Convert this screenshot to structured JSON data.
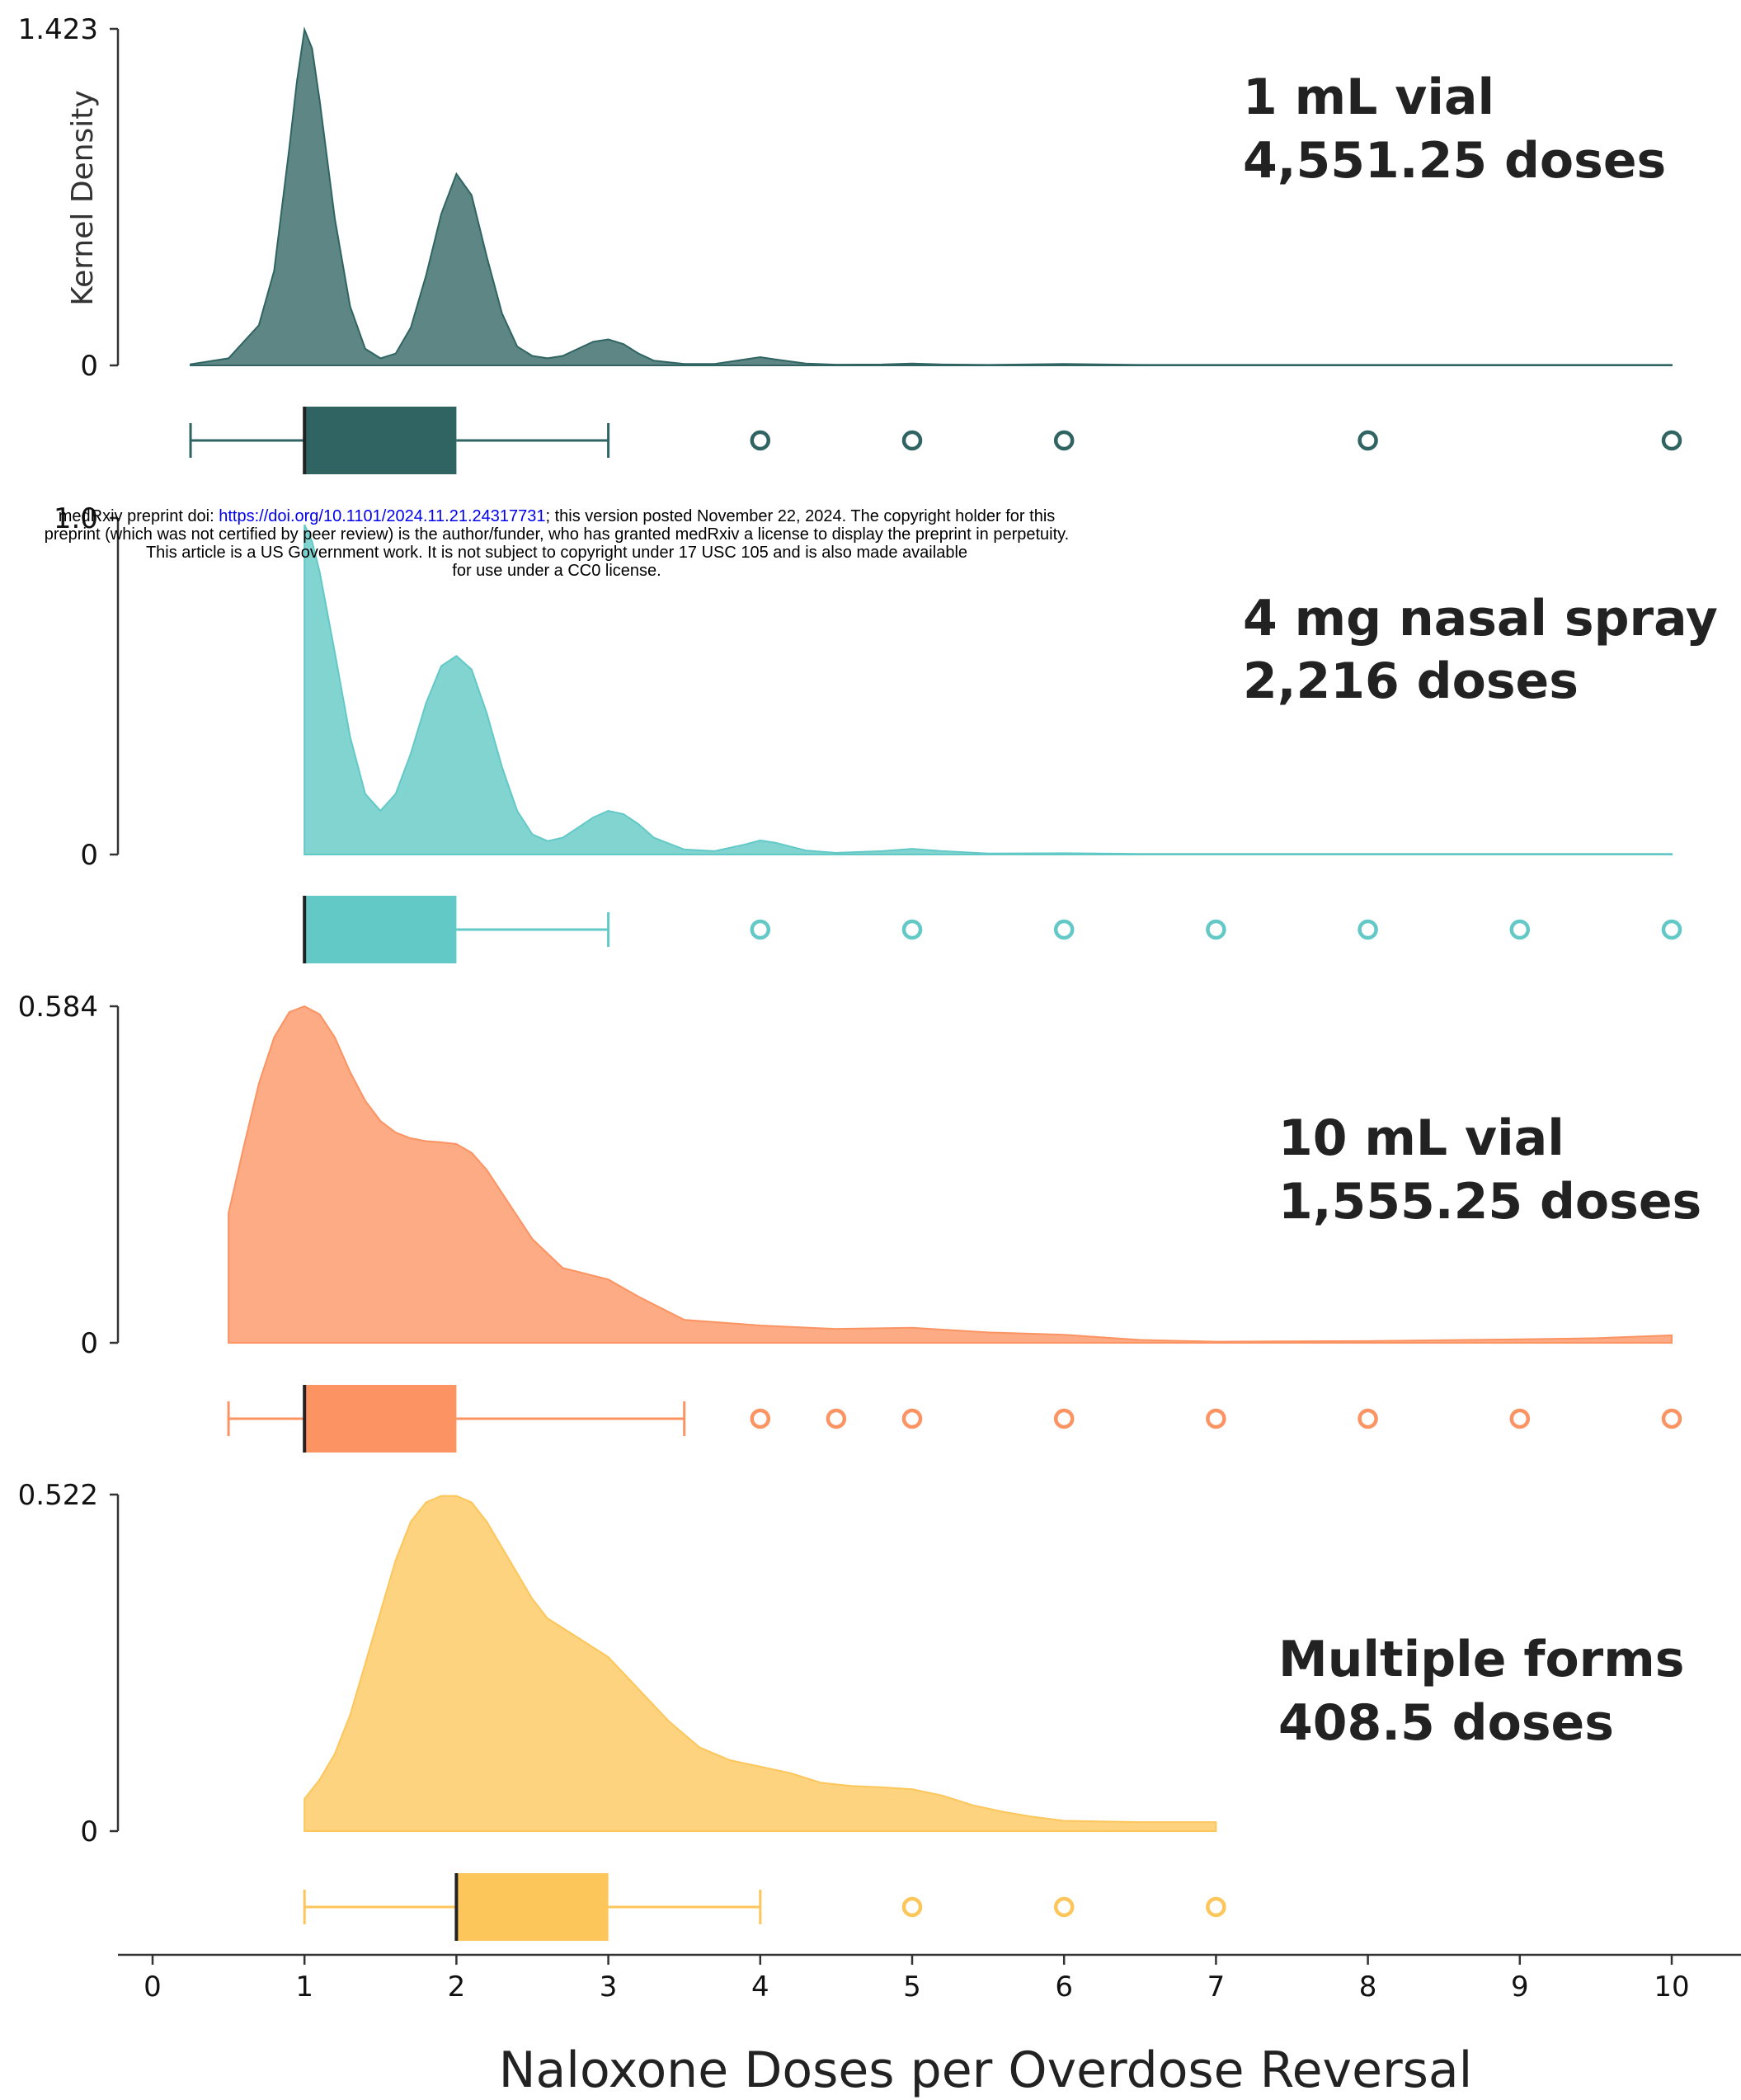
{
  "watermark": {
    "prefix": "medRxiv preprint doi: ",
    "doi": "https://doi.org/10.1101/2024.11.21.24317731",
    "suffix": "; this version posted November 22, 2024. The copyright holder for this",
    "line2": "preprint (which was not certified by peer review) is the author/funder, who has granted medRxiv a license to display the preprint in perpetuity.",
    "line3": "This article is a US Government work. It is not subject to copyright under 17 USC 105 and is also made available",
    "line4": "for use under a CC0 license."
  },
  "chart_data": {
    "type": "area",
    "xlabel": "Naloxone Doses per Overdose Reversal",
    "ylabel": "Kernel Density",
    "xlim": [
      0,
      10
    ],
    "xticks": [
      0,
      1,
      2,
      3,
      4,
      5,
      6,
      7,
      8,
      9,
      10
    ],
    "grid": false,
    "panels": [
      {
        "label_line1": "1 mL vial",
        "label_line2": "4,551.25 doses",
        "color": "#2f6462",
        "fill_opacity": 0.78,
        "ymax": 1.423,
        "ymax_label": "1.423",
        "ymin_label": "0",
        "density": {
          "x": [
            0.25,
            0.5,
            0.7,
            0.8,
            0.9,
            0.95,
            1.0,
            1.05,
            1.1,
            1.2,
            1.3,
            1.4,
            1.5,
            1.6,
            1.7,
            1.8,
            1.9,
            2.0,
            2.1,
            2.2,
            2.3,
            2.4,
            2.5,
            2.6,
            2.7,
            2.8,
            2.9,
            3.0,
            3.1,
            3.2,
            3.3,
            3.5,
            3.7,
            3.9,
            4.0,
            4.1,
            4.3,
            4.5,
            4.8,
            5.0,
            5.2,
            5.5,
            6.0,
            6.5,
            7.0,
            8.0,
            9.0,
            10.0
          ],
          "y": [
            0.005,
            0.03,
            0.17,
            0.4,
            0.92,
            1.2,
            1.42,
            1.34,
            1.12,
            0.62,
            0.25,
            0.07,
            0.03,
            0.05,
            0.16,
            0.38,
            0.64,
            0.81,
            0.72,
            0.46,
            0.22,
            0.08,
            0.04,
            0.03,
            0.04,
            0.07,
            0.1,
            0.11,
            0.09,
            0.05,
            0.02,
            0.006,
            0.006,
            0.025,
            0.035,
            0.025,
            0.008,
            0.003,
            0.004,
            0.008,
            0.004,
            0.002,
            0.006,
            0.002,
            0.002,
            0.002,
            0.002,
            0.002
          ]
        },
        "box": {
          "whisker_low": 0.25,
          "q1": 1,
          "median": 1,
          "q3": 2,
          "whisker_high": 3
        },
        "outliers": [
          4,
          5,
          6,
          8,
          10
        ]
      },
      {
        "label_line1": "4 mg nasal spray",
        "label_line2": "2,216 doses",
        "color": "#63c9c6",
        "fill_opacity": 0.8,
        "ymax": 1.0,
        "ymax_label": "1.0",
        "ymin_label": "0",
        "density": {
          "x": [
            1.0,
            1.05,
            1.1,
            1.2,
            1.3,
            1.4,
            1.5,
            1.6,
            1.7,
            1.8,
            1.9,
            2.0,
            2.1,
            2.2,
            2.3,
            2.4,
            2.5,
            2.6,
            2.7,
            2.8,
            2.9,
            3.0,
            3.1,
            3.2,
            3.3,
            3.5,
            3.7,
            3.9,
            4.0,
            4.1,
            4.3,
            4.5,
            4.8,
            5.0,
            5.2,
            5.5,
            6.0,
            6.5,
            7.0,
            8.0,
            9.0,
            10.0
          ],
          "y": [
            0.98,
            0.93,
            0.84,
            0.6,
            0.35,
            0.18,
            0.13,
            0.18,
            0.3,
            0.45,
            0.56,
            0.59,
            0.55,
            0.42,
            0.26,
            0.13,
            0.06,
            0.04,
            0.05,
            0.08,
            0.11,
            0.13,
            0.12,
            0.09,
            0.05,
            0.015,
            0.01,
            0.03,
            0.042,
            0.035,
            0.012,
            0.005,
            0.01,
            0.017,
            0.01,
            0.003,
            0.004,
            0.002,
            0.002,
            0.002,
            0.002,
            0.002
          ]
        },
        "box": {
          "whisker_low": 1,
          "q1": 1,
          "median": 1,
          "q3": 2,
          "whisker_high": 3
        },
        "outliers": [
          4,
          5,
          6,
          7,
          8,
          9,
          10
        ]
      },
      {
        "label_line1": "10 mL vial",
        "label_line2": "1,555.25 doses",
        "color": "#fb9362",
        "fill_opacity": 0.78,
        "ymax": 0.584,
        "ymax_label": "0.584",
        "ymin_label": "0",
        "density": {
          "x": [
            0.5,
            0.6,
            0.7,
            0.8,
            0.9,
            1.0,
            1.1,
            1.2,
            1.3,
            1.4,
            1.5,
            1.6,
            1.7,
            1.8,
            1.9,
            2.0,
            2.1,
            2.2,
            2.3,
            2.4,
            2.5,
            2.7,
            3.0,
            3.2,
            3.5,
            4.0,
            4.5,
            5.0,
            5.5,
            6.0,
            6.5,
            7.0,
            8.0,
            9.0,
            9.5,
            10.0
          ],
          "y": [
            0.225,
            0.34,
            0.45,
            0.53,
            0.574,
            0.584,
            0.57,
            0.53,
            0.47,
            0.42,
            0.385,
            0.365,
            0.355,
            0.35,
            0.348,
            0.345,
            0.33,
            0.3,
            0.26,
            0.22,
            0.18,
            0.13,
            0.11,
            0.08,
            0.04,
            0.03,
            0.024,
            0.026,
            0.018,
            0.014,
            0.005,
            0.002,
            0.003,
            0.006,
            0.008,
            0.013
          ]
        },
        "box": {
          "whisker_low": 0.5,
          "q1": 1,
          "median": 1,
          "q3": 2,
          "whisker_high": 3.5
        },
        "outliers": [
          4,
          4.5,
          5,
          6,
          7,
          8,
          9,
          10
        ]
      },
      {
        "label_line1": "Multiple forms",
        "label_line2": "408.5 doses",
        "color": "#fdc65b",
        "fill_opacity": 0.78,
        "ymax": 0.522,
        "ymax_label": "0.522",
        "ymin_label": "0",
        "density": {
          "x": [
            1.0,
            1.1,
            1.2,
            1.3,
            1.4,
            1.5,
            1.6,
            1.7,
            1.8,
            1.9,
            2.0,
            2.1,
            2.2,
            2.3,
            2.4,
            2.5,
            2.6,
            2.8,
            3.0,
            3.2,
            3.4,
            3.6,
            3.8,
            4.0,
            4.2,
            4.4,
            4.6,
            4.8,
            5.0,
            5.2,
            5.4,
            5.6,
            5.8,
            6.0,
            6.5,
            7.0
          ],
          "y": [
            0.05,
            0.08,
            0.12,
            0.18,
            0.26,
            0.34,
            0.42,
            0.48,
            0.51,
            0.52,
            0.52,
            0.51,
            0.48,
            0.44,
            0.4,
            0.36,
            0.33,
            0.3,
            0.27,
            0.22,
            0.17,
            0.13,
            0.11,
            0.1,
            0.09,
            0.075,
            0.07,
            0.068,
            0.065,
            0.055,
            0.04,
            0.03,
            0.022,
            0.016,
            0.014,
            0.014
          ]
        },
        "box": {
          "whisker_low": 1,
          "q1": 2,
          "median": 2,
          "q3": 3,
          "whisker_high": 4
        },
        "outliers": [
          5,
          6,
          7
        ]
      }
    ]
  }
}
